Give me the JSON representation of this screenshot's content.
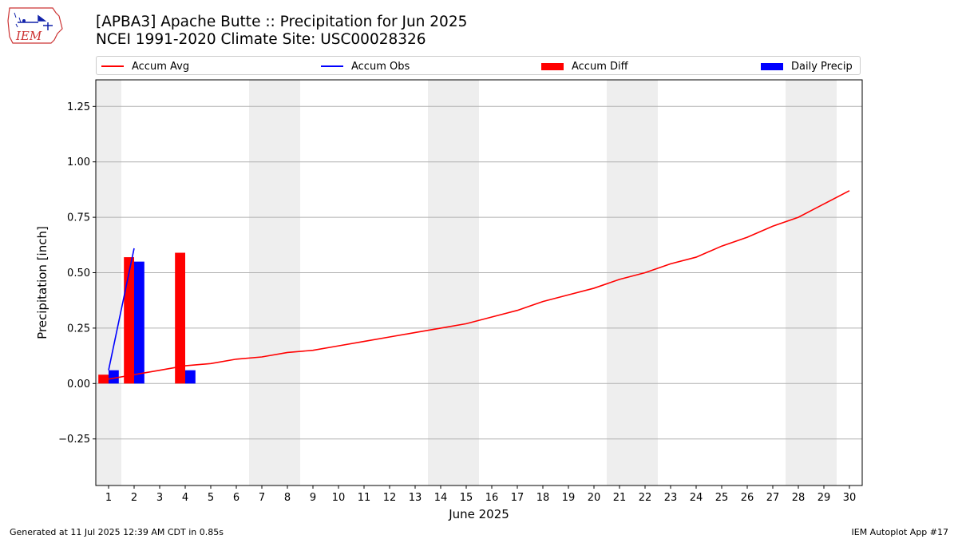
{
  "logo": {
    "text": "IEM"
  },
  "title": {
    "line1": "[APBA3] Apache Butte :: Precipitation for Jun 2025",
    "line2": "NCEI 1991-2020 Climate Site: USC00028326"
  },
  "legend": {
    "accum_avg": "Accum Avg",
    "accum_obs": "Accum Obs",
    "accum_diff": "Accum Diff",
    "daily_precip": "Daily Precip"
  },
  "footer": {
    "left": "Generated at 11 Jul 2025 12:39 AM CDT in 0.85s",
    "right": "IEM Autoplot App #17"
  },
  "colors": {
    "accum_avg": "#ff0000",
    "accum_obs": "#0000ff",
    "accum_diff": "#ff0000",
    "daily_precip": "#0000ff",
    "weekend_shade": "#eeeeee",
    "grid": "#b0b0b0"
  },
  "chart_data": {
    "type": "bar",
    "xlabel": "June 2025",
    "ylabel": "Precipitation [inch]",
    "x": [
      1,
      2,
      3,
      4,
      5,
      6,
      7,
      8,
      9,
      10,
      11,
      12,
      13,
      14,
      15,
      16,
      17,
      18,
      19,
      20,
      21,
      22,
      23,
      24,
      25,
      26,
      27,
      28,
      29,
      30
    ],
    "xlim": [
      0.5,
      30.5
    ],
    "ylim": [
      -0.46,
      1.37
    ],
    "yticks": [
      -0.25,
      0,
      0.25,
      0.5,
      0.75,
      1.0,
      1.25
    ],
    "ytick_labels": [
      "−0.25",
      "0.00",
      "0.25",
      "0.50",
      "0.75",
      "1.00",
      "1.25"
    ],
    "grid": "horizontal",
    "legend_position": "top",
    "shaded_days": [
      1,
      7,
      8,
      14,
      15,
      21,
      22,
      28,
      29
    ],
    "series": [
      {
        "name": "Accum Avg",
        "type": "line",
        "x": [
          1,
          2,
          3,
          4,
          5,
          6,
          7,
          8,
          9,
          10,
          11,
          12,
          13,
          14,
          15,
          16,
          17,
          18,
          19,
          20,
          21,
          22,
          23,
          24,
          25,
          26,
          27,
          28,
          29,
          30
        ],
        "values": [
          0.02,
          0.04,
          0.06,
          0.08,
          0.09,
          0.11,
          0.12,
          0.14,
          0.15,
          0.17,
          0.19,
          0.21,
          0.23,
          0.25,
          0.27,
          0.3,
          0.33,
          0.37,
          0.4,
          0.43,
          0.47,
          0.5,
          0.54,
          0.57,
          0.62,
          0.66,
          0.71,
          0.75,
          0.81,
          0.87
        ]
      },
      {
        "name": "Accum Obs",
        "type": "line",
        "x": [
          1,
          2
        ],
        "values": [
          0.06,
          0.61
        ]
      },
      {
        "name": "Accum Diff",
        "type": "bar",
        "x": [
          1,
          2,
          4
        ],
        "values": [
          0.04,
          0.57,
          0.59
        ]
      },
      {
        "name": "Daily Precip",
        "type": "bar",
        "x": [
          1,
          2,
          4
        ],
        "values": [
          0.06,
          0.55,
          0.06
        ]
      }
    ]
  }
}
